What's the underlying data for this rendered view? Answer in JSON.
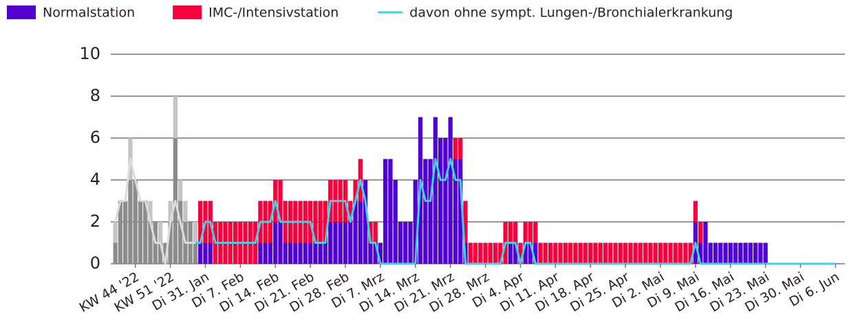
{
  "chart_data": {
    "type": "bar",
    "categories": [
      null,
      null,
      null,
      null,
      "KW 44 '22",
      null,
      null,
      null,
      null,
      null,
      null,
      "KW 51 '22",
      null,
      null,
      null,
      null,
      null,
      null,
      "Di 31. Jan",
      null,
      null,
      null,
      null,
      null,
      null,
      "Di 7. Feb",
      null,
      null,
      null,
      null,
      null,
      null,
      "Di 14. Feb",
      null,
      null,
      null,
      null,
      null,
      null,
      "Di 21. Feb",
      null,
      null,
      null,
      null,
      null,
      null,
      "Di 28. Feb",
      null,
      null,
      null,
      null,
      null,
      null,
      "Di 7. Mrz",
      null,
      null,
      null,
      null,
      null,
      null,
      "Di 14. Mrz",
      null,
      null,
      null,
      null,
      null,
      null,
      "Di 21. Mrz",
      null,
      null,
      null,
      null,
      null,
      null,
      "Di 28. Mrz",
      null,
      null,
      null,
      null,
      null,
      null,
      "Di 4. Apr",
      null,
      null,
      null,
      null,
      null,
      null,
      "Di 11. Apr",
      null,
      null,
      null,
      null,
      null,
      null,
      "Di 18. Apr",
      null,
      null,
      null,
      null,
      null,
      null,
      "Di 25. Apr",
      null,
      null,
      null,
      null,
      null,
      null,
      "Di 2. Mai",
      null,
      null,
      null,
      null,
      null,
      null,
      "Di 9. Mai",
      null,
      null,
      null,
      null,
      null,
      null,
      "Di 16. Mai",
      null,
      null,
      null,
      null,
      null,
      null,
      "Di 23. Mai",
      null,
      null,
      null,
      null,
      null,
      null,
      "Di 30. Mai",
      null,
      null,
      null,
      null,
      null,
      null,
      "Di 6. Jun"
    ],
    "series": [
      {
        "name": "Normalstation",
        "color": "#5000d0",
        "stack": true,
        "values": [
          1,
          3,
          3,
          4,
          4,
          3,
          3,
          2,
          2,
          1,
          1,
          2,
          6,
          3,
          2,
          2,
          1,
          1,
          1,
          1,
          0,
          0,
          0,
          0,
          0,
          0,
          0,
          0,
          0,
          1,
          1,
          1,
          2,
          2,
          1,
          1,
          1,
          1,
          1,
          1,
          1,
          1,
          1,
          2,
          2,
          2,
          2,
          2,
          3,
          3,
          4,
          1,
          1,
          1,
          5,
          5,
          4,
          2,
          2,
          2,
          4,
          7,
          5,
          5,
          7,
          6,
          6,
          7,
          5,
          5,
          1,
          0,
          0,
          0,
          0,
          0,
          0,
          0,
          0,
          1,
          1,
          0,
          1,
          1,
          1,
          0,
          0,
          0,
          0,
          0,
          0,
          0,
          0,
          0,
          0,
          0,
          0,
          0,
          0,
          0,
          0,
          0,
          0,
          0,
          0,
          0,
          0,
          0,
          0,
          0,
          0,
          0,
          0,
          0,
          0,
          0,
          2,
          1,
          2,
          1,
          1,
          1,
          1,
          1,
          1,
          1,
          1,
          1,
          1,
          1,
          1,
          0,
          0,
          0,
          0,
          0,
          0,
          0,
          0,
          0,
          0,
          0,
          0,
          0,
          0
        ],
        "colors": [
          "#8c8c8c",
          "#8c8c8c",
          "#8c8c8c",
          "#8c8c8c",
          "#8c8c8c",
          "#8c8c8c",
          "#8c8c8c",
          "#8c8c8c",
          "#8c8c8c",
          "#8c8c8c",
          "#8c8c8c",
          "#8c8c8c",
          "#8c8c8c",
          "#8c8c8c",
          "#8c8c8c",
          "#8c8c8c",
          "#8c8c8c",
          "#5000d0",
          "#5000d0",
          "#5000d0",
          "#5000d0",
          "#5000d0",
          "#5000d0",
          "#5000d0",
          "#5000d0",
          "#5000d0",
          "#5000d0",
          "#5000d0",
          "#5000d0",
          "#5000d0",
          "#5000d0",
          "#5000d0",
          "#5000d0",
          "#5000d0",
          "#5000d0",
          "#5000d0",
          "#5000d0",
          "#5000d0",
          "#5000d0",
          "#5000d0",
          "#5000d0",
          "#5000d0",
          "#5000d0",
          "#5000d0",
          "#5000d0",
          "#5000d0",
          "#5000d0",
          "#5000d0",
          "#5000d0",
          "#5000d0",
          "#5000d0",
          "#5000d0",
          "#5000d0",
          "#5000d0",
          "#5000d0",
          "#5000d0",
          "#5000d0",
          "#5000d0",
          "#5000d0",
          "#5000d0",
          "#5000d0",
          "#5000d0",
          "#5000d0",
          "#5000d0",
          "#5000d0",
          "#5000d0",
          "#5000d0",
          "#5000d0",
          "#5000d0",
          "#5000d0",
          "#5000d0",
          "#5000d0",
          "#5000d0",
          "#5000d0",
          "#5000d0",
          "#5000d0",
          "#5000d0",
          "#5000d0",
          "#5000d0",
          "#5000d0",
          "#5000d0",
          "#5000d0",
          "#5000d0",
          "#5000d0",
          "#5000d0",
          "#5000d0",
          "#5000d0",
          "#5000d0",
          "#5000d0",
          "#5000d0",
          "#5000d0",
          "#5000d0",
          "#5000d0",
          "#5000d0",
          "#5000d0",
          "#5000d0",
          "#5000d0",
          "#5000d0",
          "#5000d0",
          "#5000d0",
          "#5000d0",
          "#5000d0",
          "#5000d0",
          "#5000d0",
          "#5000d0",
          "#5000d0",
          "#5000d0",
          "#5000d0",
          "#5000d0",
          "#5000d0",
          "#5000d0",
          "#5000d0",
          "#5000d0",
          "#5000d0",
          "#5000d0",
          "#5000d0",
          "#5000d0",
          "#5000d0",
          "#5000d0",
          "#5000d0",
          "#5000d0",
          "#5000d0",
          "#5000d0",
          "#5000d0",
          "#5000d0",
          "#5000d0",
          "#5000d0",
          "#5000d0",
          "#5000d0",
          "#5000d0",
          "#5000d0",
          "#5000d0",
          "#5000d0",
          "#5000d0",
          "#5000d0",
          "#5000d0",
          "#5000d0",
          "#5000d0",
          "#5000d0",
          "#5000d0",
          "#5000d0",
          "#5000d0",
          "#5000d0",
          "#5000d0",
          "#5000d0"
        ]
      },
      {
        "name": "IMC-/Intensivstation",
        "color": "#f5003d",
        "stack": true,
        "values": [
          1,
          0,
          0,
          2,
          0,
          0,
          0,
          1,
          0,
          1,
          0,
          1,
          2,
          1,
          1,
          0,
          1,
          2,
          2,
          2,
          2,
          2,
          2,
          2,
          2,
          2,
          2,
          2,
          2,
          2,
          2,
          2,
          2,
          2,
          2,
          2,
          2,
          2,
          2,
          2,
          2,
          2,
          2,
          2,
          2,
          2,
          2,
          1,
          1,
          2,
          0,
          1,
          1,
          0,
          0,
          0,
          0,
          0,
          0,
          0,
          0,
          0,
          0,
          0,
          0,
          0,
          0,
          0,
          1,
          1,
          2,
          1,
          1,
          1,
          1,
          1,
          1,
          1,
          2,
          1,
          1,
          1,
          1,
          1,
          1,
          1,
          1,
          1,
          1,
          1,
          1,
          1,
          1,
          1,
          1,
          1,
          1,
          1,
          1,
          1,
          1,
          1,
          1,
          1,
          1,
          1,
          1,
          1,
          1,
          1,
          1,
          1,
          1,
          1,
          1,
          1,
          1,
          1,
          0,
          0,
          0,
          0,
          0,
          0,
          0,
          0,
          0,
          0,
          0,
          0,
          0,
          0,
          0,
          0,
          0,
          0,
          0,
          0,
          0,
          0,
          0,
          0,
          0,
          0,
          0
        ],
        "colors": [
          "#c4c4c4",
          "#c4c4c4",
          "#c4c4c4",
          "#c4c4c4",
          "#c4c4c4",
          "#c4c4c4",
          "#c4c4c4",
          "#c4c4c4",
          "#c4c4c4",
          "#c4c4c4",
          "#c4c4c4",
          "#c4c4c4",
          "#c4c4c4",
          "#c4c4c4",
          "#c4c4c4",
          "#c4c4c4",
          "#c4c4c4",
          "#f5003d",
          "#f5003d",
          "#f5003d",
          "#f5003d",
          "#f5003d",
          "#f5003d",
          "#f5003d",
          "#f5003d",
          "#f5003d",
          "#f5003d",
          "#f5003d",
          "#f5003d",
          "#f5003d",
          "#f5003d",
          "#f5003d",
          "#f5003d",
          "#f5003d",
          "#f5003d",
          "#f5003d",
          "#f5003d",
          "#f5003d",
          "#f5003d",
          "#f5003d",
          "#f5003d",
          "#f5003d",
          "#f5003d",
          "#f5003d",
          "#f5003d",
          "#f5003d",
          "#f5003d",
          "#f5003d",
          "#f5003d",
          "#f5003d",
          "#f5003d",
          "#f5003d",
          "#f5003d",
          "#f5003d",
          "#f5003d",
          "#f5003d",
          "#f5003d",
          "#f5003d",
          "#f5003d",
          "#f5003d",
          "#f5003d",
          "#f5003d",
          "#f5003d",
          "#f5003d",
          "#f5003d",
          "#f5003d",
          "#f5003d",
          "#f5003d",
          "#f5003d",
          "#f5003d",
          "#f5003d",
          "#f5003d",
          "#f5003d",
          "#f5003d",
          "#f5003d",
          "#f5003d",
          "#f5003d",
          "#f5003d",
          "#f5003d",
          "#f5003d",
          "#f5003d",
          "#f5003d",
          "#f5003d",
          "#f5003d",
          "#f5003d",
          "#f5003d",
          "#f5003d",
          "#f5003d",
          "#f5003d",
          "#f5003d",
          "#f5003d",
          "#f5003d",
          "#f5003d",
          "#f5003d",
          "#f5003d",
          "#f5003d",
          "#f5003d",
          "#f5003d",
          "#f5003d",
          "#f5003d",
          "#f5003d",
          "#f5003d",
          "#f5003d",
          "#f5003d",
          "#f5003d",
          "#f5003d",
          "#f5003d",
          "#f5003d",
          "#f5003d",
          "#f5003d",
          "#f5003d",
          "#f5003d",
          "#f5003d",
          "#f5003d",
          "#f5003d",
          "#f5003d",
          "#f5003d",
          "#f5003d",
          "#f5003d",
          "#f5003d",
          "#f5003d",
          "#f5003d",
          "#f5003d",
          "#f5003d",
          "#f5003d",
          "#f5003d",
          "#f5003d",
          "#f5003d",
          "#f5003d",
          "#f5003d",
          "#f5003d",
          "#f5003d",
          "#f5003d",
          "#f5003d",
          "#f5003d",
          "#f5003d",
          "#f5003d",
          "#f5003d",
          "#f5003d",
          "#f5003d",
          "#f5003d"
        ]
      },
      {
        "name": "davon ohne sympt. Lungen-/Bronchialerkrankung",
        "color": "#3ed2e6",
        "type": "line",
        "values": [
          2,
          3,
          3,
          5,
          4,
          3,
          3,
          2,
          1,
          1,
          0,
          2,
          3,
          2,
          1,
          1,
          1,
          1,
          2,
          2,
          1,
          1,
          1,
          1,
          1,
          1,
          1,
          1,
          1,
          2,
          2,
          2,
          3,
          2,
          2,
          2,
          2,
          2,
          2,
          2,
          1,
          1,
          1,
          3,
          3,
          3,
          3,
          2,
          3,
          4,
          3,
          1,
          1,
          0,
          0,
          0,
          0,
          0,
          0,
          0,
          0,
          4,
          3,
          3,
          5,
          4,
          4,
          5,
          4,
          4,
          0,
          0,
          0,
          0,
          0,
          0,
          0,
          0,
          1,
          1,
          1,
          0,
          1,
          1,
          0,
          0,
          0,
          0,
          0,
          0,
          0,
          0,
          0,
          0,
          0,
          0,
          0,
          0,
          0,
          0,
          0,
          0,
          0,
          0,
          0,
          0,
          0,
          0,
          0,
          0,
          0,
          0,
          0,
          0,
          0,
          0,
          1,
          0,
          0,
          0,
          0,
          0,
          0,
          0,
          0,
          0,
          0,
          0,
          0,
          0,
          0,
          0,
          0,
          0,
          0,
          0,
          0,
          0,
          0,
          0,
          0,
          0,
          0,
          0,
          0
        ],
        "colors": [
          "#dcdcdc",
          "#dcdcdc",
          "#dcdcdc",
          "#dcdcdc",
          "#dcdcdc",
          "#dcdcdc",
          "#dcdcdc",
          "#dcdcdc",
          "#dcdcdc",
          "#dcdcdc",
          "#dcdcdc",
          "#dcdcdc",
          "#dcdcdc",
          "#dcdcdc",
          "#dcdcdc",
          "#dcdcdc",
          "#dcdcdc",
          "#3ed2e6",
          "#3ed2e6",
          "#3ed2e6",
          "#3ed2e6",
          "#3ed2e6",
          "#3ed2e6",
          "#3ed2e6",
          "#3ed2e6",
          "#3ed2e6",
          "#3ed2e6",
          "#3ed2e6",
          "#3ed2e6",
          "#3ed2e6",
          "#3ed2e6",
          "#3ed2e6",
          "#3ed2e6",
          "#3ed2e6",
          "#3ed2e6",
          "#3ed2e6",
          "#3ed2e6",
          "#3ed2e6",
          "#3ed2e6",
          "#3ed2e6",
          "#3ed2e6",
          "#3ed2e6",
          "#3ed2e6",
          "#3ed2e6",
          "#3ed2e6",
          "#3ed2e6",
          "#3ed2e6",
          "#3ed2e6",
          "#3ed2e6",
          "#3ed2e6",
          "#3ed2e6",
          "#3ed2e6",
          "#3ed2e6",
          "#3ed2e6",
          "#3ed2e6",
          "#3ed2e6",
          "#3ed2e6",
          "#3ed2e6",
          "#3ed2e6",
          "#3ed2e6",
          "#3ed2e6",
          "#3ed2e6",
          "#3ed2e6",
          "#3ed2e6",
          "#3ed2e6",
          "#3ed2e6",
          "#3ed2e6",
          "#3ed2e6",
          "#3ed2e6",
          "#3ed2e6",
          "#3ed2e6",
          "#3ed2e6",
          "#3ed2e6",
          "#3ed2e6",
          "#3ed2e6",
          "#3ed2e6",
          "#3ed2e6",
          "#3ed2e6",
          "#3ed2e6",
          "#3ed2e6",
          "#3ed2e6",
          "#3ed2e6",
          "#3ed2e6",
          "#3ed2e6",
          "#3ed2e6",
          "#3ed2e6",
          "#3ed2e6",
          "#3ed2e6",
          "#3ed2e6",
          "#3ed2e6",
          "#3ed2e6",
          "#3ed2e6",
          "#3ed2e6",
          "#3ed2e6",
          "#3ed2e6",
          "#3ed2e6",
          "#3ed2e6",
          "#3ed2e6",
          "#3ed2e6",
          "#3ed2e6",
          "#3ed2e6",
          "#3ed2e6",
          "#3ed2e6",
          "#3ed2e6",
          "#3ed2e6",
          "#3ed2e6",
          "#3ed2e6",
          "#3ed2e6",
          "#3ed2e6",
          "#3ed2e6",
          "#3ed2e6",
          "#3ed2e6",
          "#3ed2e6",
          "#3ed2e6",
          "#3ed2e6",
          "#3ed2e6",
          "#3ed2e6",
          "#3ed2e6",
          "#3ed2e6",
          "#3ed2e6",
          "#3ed2e6",
          "#3ed2e6",
          "#3ed2e6",
          "#3ed2e6",
          "#3ed2e6",
          "#3ed2e6",
          "#3ed2e6",
          "#3ed2e6",
          "#3ed2e6",
          "#3ed2e6",
          "#3ed2e6",
          "#3ed2e6",
          "#3ed2e6",
          "#3ed2e6",
          "#3ed2e6",
          "#3ed2e6",
          "#3ed2e6",
          "#3ed2e6",
          "#3ed2e6",
          "#3ed2e6",
          "#3ed2e6",
          "#3ed2e6",
          "#3ed2e6",
          "#3ed2e6",
          "#3ed2e6"
        ]
      }
    ],
    "ylim": [
      0,
      10
    ],
    "yticks": [
      0,
      2,
      4,
      6,
      8,
      10
    ],
    "grid": true,
    "legend": "top"
  }
}
